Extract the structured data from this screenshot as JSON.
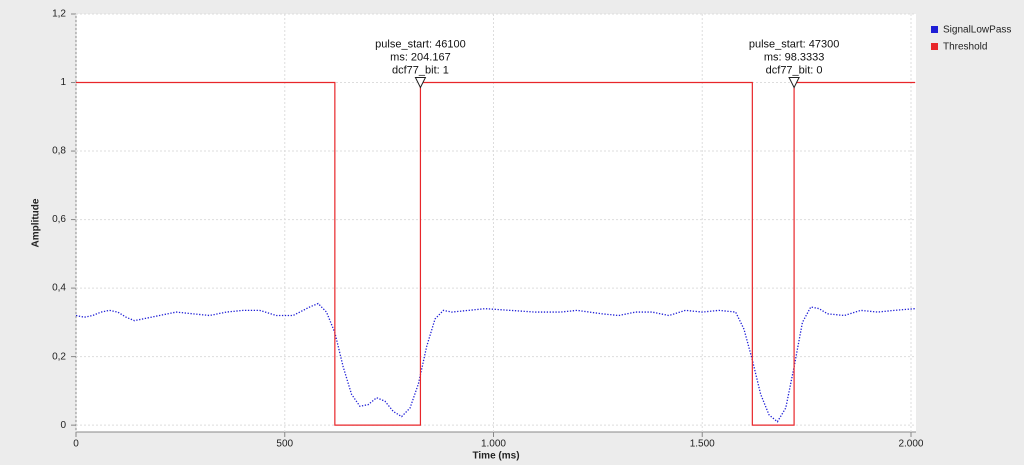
{
  "chart_data": {
    "type": "line",
    "x_label": "Time (ms)",
    "y_label": "Amplitude",
    "xlim": [
      0,
      2012
    ],
    "ylim": [
      -0.02,
      1.2
    ],
    "xticks": [
      0,
      500,
      {
        "value": 1000,
        "label": "1.000"
      },
      {
        "value": 1500,
        "label": "1.500"
      },
      {
        "value": 2000,
        "label": "2.000"
      }
    ],
    "yticks": [
      0,
      {
        "value": 0.2,
        "label": "0,2"
      },
      {
        "value": 0.4,
        "label": "0,4"
      },
      {
        "value": 0.6,
        "label": "0,6"
      },
      {
        "value": 0.8,
        "label": "0,8"
      },
      1,
      {
        "value": 1.2,
        "label": "1,2"
      }
    ],
    "grid": true,
    "legend": "right",
    "series": [
      {
        "name": "SignalLowPass",
        "color": "#1f1fd6",
        "style": "dotted",
        "x": [
          0,
          20,
          40,
          60,
          80,
          100,
          120,
          140,
          160,
          200,
          240,
          280,
          320,
          360,
          400,
          440,
          480,
          520,
          560,
          580,
          600,
          620,
          640,
          660,
          680,
          700,
          720,
          740,
          760,
          780,
          800,
          820,
          840,
          860,
          880,
          900,
          940,
          980,
          1040,
          1100,
          1160,
          1200,
          1260,
          1300,
          1340,
          1380,
          1420,
          1460,
          1500,
          1540,
          1580,
          1600,
          1620,
          1640,
          1660,
          1680,
          1700,
          1720,
          1740,
          1760,
          1780,
          1800,
          1840,
          1880,
          1920,
          1960,
          2010
        ],
        "values": [
          0.32,
          0.315,
          0.32,
          0.33,
          0.335,
          0.33,
          0.315,
          0.305,
          0.31,
          0.32,
          0.33,
          0.325,
          0.32,
          0.33,
          0.335,
          0.335,
          0.32,
          0.32,
          0.345,
          0.355,
          0.33,
          0.27,
          0.17,
          0.09,
          0.055,
          0.06,
          0.08,
          0.07,
          0.04,
          0.025,
          0.05,
          0.12,
          0.23,
          0.31,
          0.335,
          0.33,
          0.335,
          0.34,
          0.335,
          0.33,
          0.33,
          0.335,
          0.325,
          0.32,
          0.33,
          0.33,
          0.32,
          0.335,
          0.33,
          0.335,
          0.33,
          0.28,
          0.19,
          0.09,
          0.03,
          0.01,
          0.05,
          0.17,
          0.3,
          0.345,
          0.34,
          0.325,
          0.32,
          0.335,
          0.33,
          0.335,
          0.34
        ]
      },
      {
        "name": "Threshold",
        "color": "#e8262a",
        "style": "solid",
        "x": [
          0,
          620,
          620,
          825,
          825,
          1620,
          1620,
          1720,
          1720,
          2010
        ],
        "values": [
          1,
          1,
          0,
          0,
          1,
          1,
          0,
          0,
          1,
          1
        ]
      }
    ],
    "annotations": [
      {
        "x": 825,
        "y": 1,
        "lines": [
          "pulse_start: 46100",
          "ms: 204.167",
          "dcf77_bit: 1"
        ]
      },
      {
        "x": 1720,
        "y": 1,
        "lines": [
          "pulse_start: 47300",
          "ms: 98.3333",
          "dcf77_bit: 0"
        ]
      }
    ]
  }
}
